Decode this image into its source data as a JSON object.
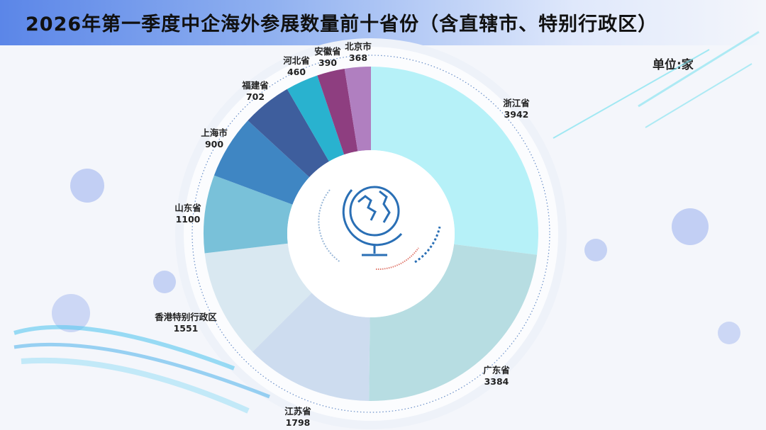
{
  "chart_data": {
    "type": "pie",
    "variant": "donut",
    "title": "2026年第一季度中企海外参展数量前十省份（含直辖市、特别行政区）",
    "unit_label": "单位:家",
    "categories": [
      "浙江省",
      "广东省",
      "江苏省",
      "香港特别行政区",
      "山东省",
      "上海市",
      "福建省",
      "河北省",
      "安徽省",
      "北京市"
    ],
    "values": [
      3942,
      3384,
      1798,
      1551,
      1100,
      900,
      702,
      460,
      390,
      368
    ],
    "colors": [
      "#b6f1f8",
      "#b7dde2",
      "#cddcef",
      "#d9e8f1",
      "#79c1d9",
      "#3f86c3",
      "#3e5e9d",
      "#29b2cf",
      "#8e3e80",
      "#b07fc0"
    ],
    "center_icon": "globe-icon"
  }
}
